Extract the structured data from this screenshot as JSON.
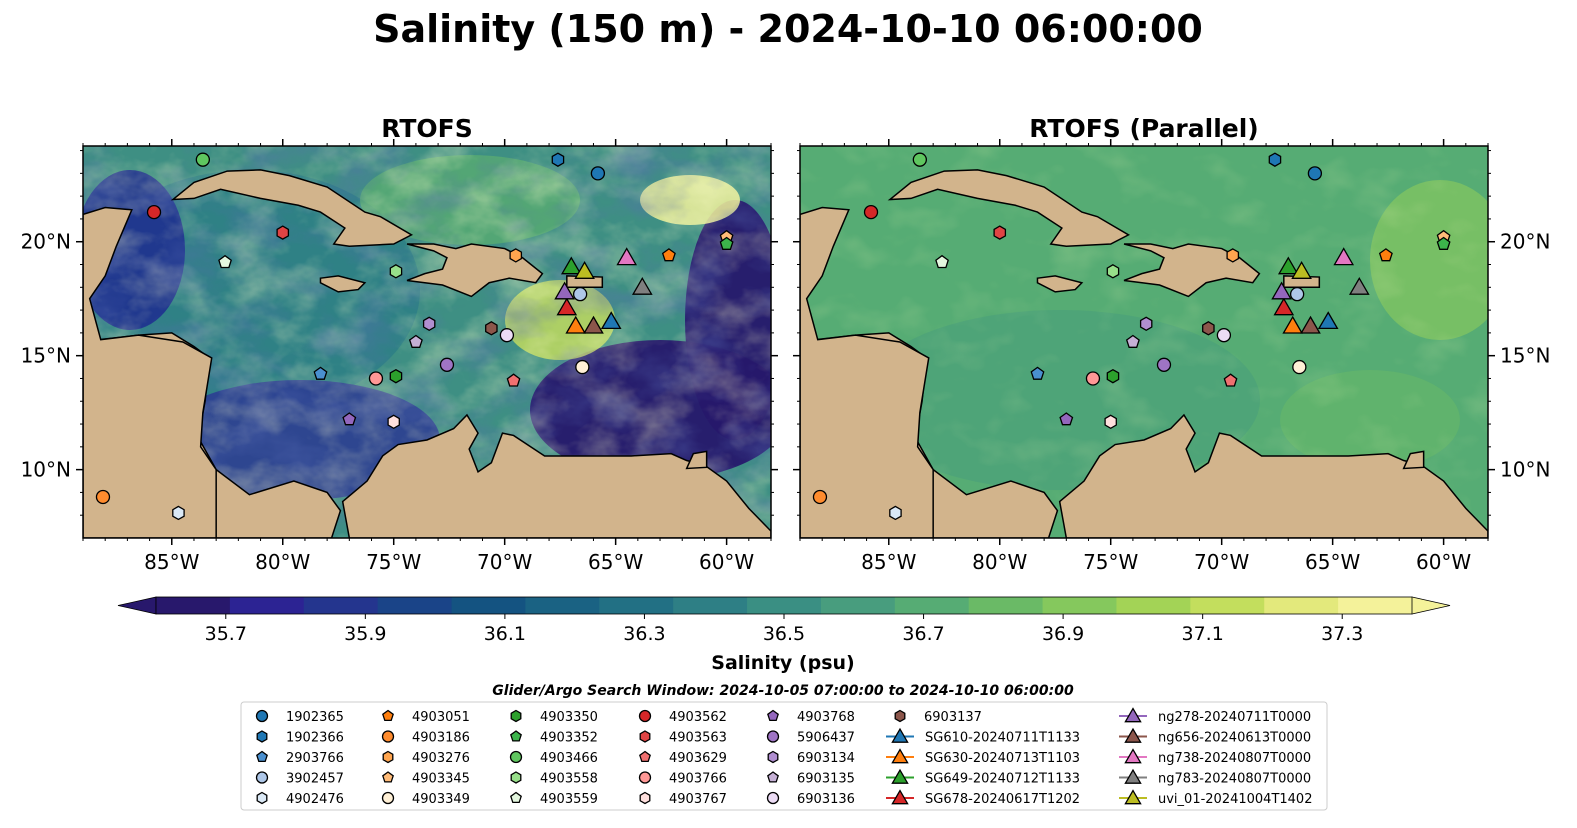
{
  "title": "Salinity (150 m) - 2024-10-10 06:00:00",
  "colors": {
    "land": "#d2b48c",
    "shelf": "#9fb8e0",
    "colormap": [
      "#28186c",
      "#2c2393",
      "#24358e",
      "#1a4488",
      "#145381",
      "#1a6283",
      "#227084",
      "#2e7f85",
      "#3a8f83",
      "#489d7e",
      "#56ac74",
      "#6aba66",
      "#85c85d",
      "#a3d356",
      "#c3de5d",
      "#e3e97c",
      "#f4f29a"
    ]
  },
  "chart_data": [
    {
      "type": "map",
      "title": "RTOFS",
      "lon_range": [
        -89,
        -58
      ],
      "lat_range": [
        7,
        24.2
      ],
      "x_ticks": [
        "85°W",
        "80°W",
        "75°W",
        "70°W",
        "65°W",
        "60°W"
      ],
      "x_tick_values": [
        -85,
        -80,
        -75,
        -70,
        -65,
        -60
      ],
      "y_ticks": [
        "20°N",
        "15°N",
        "10°N"
      ],
      "y_tick_values": [
        20,
        15,
        10
      ],
      "y_tick_side": "left"
    },
    {
      "type": "map",
      "title": "RTOFS (Parallel)",
      "lon_range": [
        -89,
        -58
      ],
      "lat_range": [
        7,
        24.2
      ],
      "x_ticks": [
        "85°W",
        "80°W",
        "75°W",
        "70°W",
        "65°W",
        "60°W"
      ],
      "x_tick_values": [
        -85,
        -80,
        -75,
        -70,
        -65,
        -60
      ],
      "y_ticks": [
        "20°N",
        "15°N",
        "10°N"
      ],
      "y_tick_values": [
        20,
        15,
        10
      ],
      "y_tick_side": "right"
    }
  ],
  "colorbar": {
    "label": "Salinity (psu)",
    "min": 35.6,
    "max": 37.4,
    "step": 0.1,
    "ticks": [
      "35.7",
      "35.9",
      "36.1",
      "36.3",
      "36.5",
      "36.7",
      "36.9",
      "37.1",
      "37.3"
    ],
    "tick_values": [
      35.7,
      35.9,
      36.1,
      36.3,
      36.5,
      36.7,
      36.9,
      37.1,
      37.3
    ],
    "extend": "both"
  },
  "search_window": "Glider/Argo Search Window: 2024-10-05 07:00:00 to 2024-10-10 06:00:00",
  "legend_columns": [
    [
      {
        "label": "1902365",
        "marker": "circle",
        "color": "#1f77b4"
      },
      {
        "label": "1902366",
        "marker": "hexagon",
        "color": "#1f77b4"
      },
      {
        "label": "2903766",
        "marker": "pentagon",
        "color": "#4a90d0"
      },
      {
        "label": "3902457",
        "marker": "circle",
        "color": "#aec7e8"
      },
      {
        "label": "4902476",
        "marker": "hexagon",
        "color": "#dbe9f6"
      }
    ],
    [
      {
        "label": "4903051",
        "marker": "pentagon",
        "color": "#ff7f0e"
      },
      {
        "label": "4903186",
        "marker": "circle",
        "color": "#ff8c2e"
      },
      {
        "label": "4903276",
        "marker": "hexagon",
        "color": "#ffa54f"
      },
      {
        "label": "4903345",
        "marker": "pentagon",
        "color": "#ffbb78"
      },
      {
        "label": "4903349",
        "marker": "circle",
        "color": "#fff0d6"
      }
    ],
    [
      {
        "label": "4903350",
        "marker": "hexagon",
        "color": "#2ca02c"
      },
      {
        "label": "4903352",
        "marker": "pentagon",
        "color": "#3cb44b"
      },
      {
        "label": "4903466",
        "marker": "circle",
        "color": "#5fc65f"
      },
      {
        "label": "4903558",
        "marker": "hexagon",
        "color": "#98df8a"
      },
      {
        "label": "4903559",
        "marker": "pentagon",
        "color": "#e4f7df"
      }
    ],
    [
      {
        "label": "4903562",
        "marker": "circle",
        "color": "#d62728"
      },
      {
        "label": "4903563",
        "marker": "hexagon",
        "color": "#e04444"
      },
      {
        "label": "4903629",
        "marker": "pentagon",
        "color": "#f07070"
      },
      {
        "label": "4903766",
        "marker": "circle",
        "color": "#ff9896"
      },
      {
        "label": "4903767",
        "marker": "hexagon",
        "color": "#ffe0de"
      }
    ],
    [
      {
        "label": "4903768",
        "marker": "pentagon",
        "color": "#9467bd"
      },
      {
        "label": "5906437",
        "marker": "circle",
        "color": "#9f74c4"
      },
      {
        "label": "6903134",
        "marker": "hexagon",
        "color": "#b08ed0"
      },
      {
        "label": "6903135",
        "marker": "pentagon",
        "color": "#c5b0d5"
      },
      {
        "label": "6903136",
        "marker": "circle",
        "color": "#ecdcf5"
      }
    ],
    [
      {
        "label": "6903137",
        "marker": "hexagon",
        "color": "#8c564b"
      },
      {
        "label": "SG610-20240711T1133",
        "marker": "triangle",
        "color": "#1f77b4",
        "line": true
      },
      {
        "label": "SG630-20240713T1103",
        "marker": "triangle",
        "color": "#ff7f0e",
        "line": true
      },
      {
        "label": "SG649-20240712T1133",
        "marker": "triangle",
        "color": "#2ca02c",
        "line": true
      },
      {
        "label": "SG678-20240617T1202",
        "marker": "triangle",
        "color": "#d62728",
        "line": true
      }
    ],
    [
      {
        "label": "ng278-20240711T0000",
        "marker": "triangle",
        "color": "#9467bd",
        "line": true
      },
      {
        "label": "ng656-20240613T0000",
        "marker": "triangle",
        "color": "#8c564b",
        "line": true
      },
      {
        "label": "ng738-20240807T0000",
        "marker": "triangle",
        "color": "#e377c2",
        "line": true
      },
      {
        "label": "ng783-20240807T0000",
        "marker": "triangle",
        "color": "#7f7f7f",
        "line": true
      },
      {
        "label": "uvi_01-20241004T1402",
        "marker": "triangle",
        "color": "#bcbd22",
        "line": true
      }
    ]
  ],
  "observations": [
    {
      "id": "1902365",
      "lon": -65.8,
      "lat": 23.0
    },
    {
      "id": "1902366",
      "lon": -67.6,
      "lat": 23.6
    },
    {
      "id": "2903766",
      "lon": -78.3,
      "lat": 14.2
    },
    {
      "id": "3902457",
      "lon": -66.6,
      "lat": 17.7
    },
    {
      "id": "4902476",
      "lon": -84.7,
      "lat": 8.1
    },
    {
      "id": "4903051",
      "lon": -62.6,
      "lat": 19.4
    },
    {
      "id": "4903186",
      "lon": -88.1,
      "lat": 8.8
    },
    {
      "id": "4903276",
      "lon": -69.5,
      "lat": 19.4
    },
    {
      "id": "4903345",
      "lon": -60.0,
      "lat": 20.2
    },
    {
      "id": "4903349",
      "lon": -66.5,
      "lat": 14.5
    },
    {
      "id": "4903350",
      "lon": -74.9,
      "lat": 14.1
    },
    {
      "id": "4903352",
      "lon": -60.0,
      "lat": 19.9
    },
    {
      "id": "4903466",
      "lon": -83.6,
      "lat": 23.6
    },
    {
      "id": "4903558",
      "lon": -74.9,
      "lat": 18.7
    },
    {
      "id": "4903559",
      "lon": -82.6,
      "lat": 19.1
    },
    {
      "id": "4903562",
      "lon": -85.8,
      "lat": 21.3
    },
    {
      "id": "4903563",
      "lon": -80.0,
      "lat": 20.4
    },
    {
      "id": "4903629",
      "lon": -69.6,
      "lat": 13.9
    },
    {
      "id": "4903766",
      "lon": -75.8,
      "lat": 14.0
    },
    {
      "id": "4903767",
      "lon": -75.0,
      "lat": 12.1
    },
    {
      "id": "4903768",
      "lon": -77.0,
      "lat": 12.2
    },
    {
      "id": "5906437",
      "lon": -72.6,
      "lat": 14.6
    },
    {
      "id": "6903134",
      "lon": -73.4,
      "lat": 16.4
    },
    {
      "id": "6903135",
      "lon": -74.0,
      "lat": 15.6
    },
    {
      "id": "6903136",
      "lon": -69.9,
      "lat": 15.9
    },
    {
      "id": "6903137",
      "lon": -70.6,
      "lat": 16.2
    },
    {
      "id": "SG610-20240711T1133",
      "lon": -65.2,
      "lat": 16.5
    },
    {
      "id": "SG630-20240713T1103",
      "lon": -66.8,
      "lat": 16.3
    },
    {
      "id": "SG649-20240712T1133",
      "lon": -67.0,
      "lat": 18.9
    },
    {
      "id": "SG678-20240617T1202",
      "lon": -67.2,
      "lat": 17.1
    },
    {
      "id": "ng278-20240711T0000",
      "lon": -67.3,
      "lat": 17.8
    },
    {
      "id": "ng656-20240613T0000",
      "lon": -66.0,
      "lat": 16.3
    },
    {
      "id": "ng738-20240807T0000",
      "lon": -64.5,
      "lat": 19.3
    },
    {
      "id": "ng783-20240807T0000",
      "lon": -63.8,
      "lat": 18.0
    },
    {
      "id": "uvi_01-20241004T1402",
      "lon": -66.4,
      "lat": 18.7
    }
  ]
}
